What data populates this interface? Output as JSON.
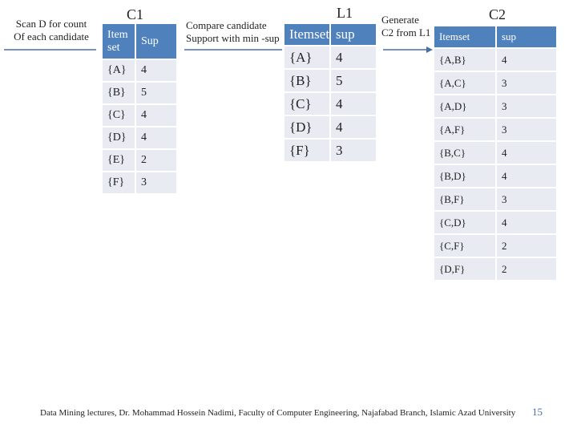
{
  "scan_note": [
    "Scan D for count",
    "Of each candidate"
  ],
  "c1": {
    "title": "C1",
    "header": [
      "Item set",
      "Sup"
    ],
    "rows": [
      [
        "{A}",
        4
      ],
      [
        "{B}",
        5
      ],
      [
        "{C}",
        4
      ],
      [
        "{D}",
        4
      ],
      [
        "{E}",
        2
      ],
      [
        "{F}",
        3
      ]
    ]
  },
  "compare_note": [
    "Compare candidate",
    "Support with min -sup"
  ],
  "l1": {
    "title": "L1",
    "header": [
      "Itemset",
      "sup"
    ],
    "rows": [
      [
        "{A}",
        4
      ],
      [
        "{B}",
        5
      ],
      [
        "{C}",
        4
      ],
      [
        "{D}",
        4
      ],
      [
        "{F}",
        3
      ]
    ]
  },
  "generate_note": [
    "Generate",
    "C2 from L1"
  ],
  "c2": {
    "title": "C2",
    "header": [
      "Itemset",
      "sup"
    ],
    "rows": [
      [
        "{A,B}",
        4
      ],
      [
        "{A,C}",
        3
      ],
      [
        "{A,D}",
        3
      ],
      [
        "{A,F}",
        3
      ],
      [
        "{B,C}",
        4
      ],
      [
        "{B,D}",
        4
      ],
      [
        "{B,F}",
        3
      ],
      [
        "{C,D}",
        4
      ],
      [
        "{C,F}",
        2
      ],
      [
        "{D,F}",
        2
      ]
    ]
  },
  "footer": {
    "text": "Data Mining lectures, Dr. Mohammad Hossein Nadimi, Faculty of Computer Engineering, Najafabad Branch, Islamic Azad University",
    "page": "15"
  }
}
